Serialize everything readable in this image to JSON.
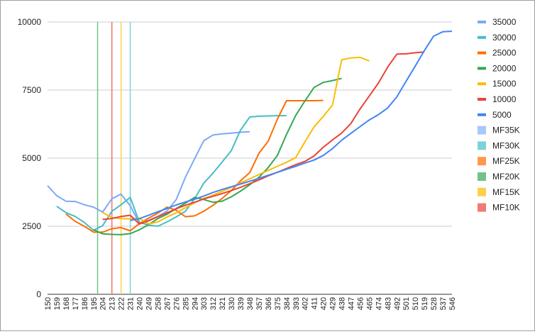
{
  "chart_data": {
    "type": "line",
    "title": "",
    "xlabel": "",
    "ylabel": "",
    "ylim": [
      0,
      10000
    ],
    "yticks": [
      0,
      2500,
      5000,
      7500,
      10000
    ],
    "ytick_labels": [
      "0",
      "2500",
      "5000",
      "7500",
      "10000"
    ],
    "grid": true,
    "legend_position": "right",
    "categories": [
      "150",
      "159",
      "168",
      "177",
      "186",
      "195",
      "204",
      "213",
      "222",
      "231",
      "240",
      "249",
      "258",
      "267",
      "276",
      "285",
      "294",
      "303",
      "312",
      "321",
      "330",
      "339",
      "348",
      "357",
      "366",
      "375",
      "384",
      "393",
      "402",
      "411",
      "420",
      "429",
      "438",
      "447",
      "456",
      "465",
      "474",
      "483",
      "492",
      "501",
      "510",
      "519",
      "528",
      "537",
      "546"
    ],
    "series": [
      {
        "name": "35000",
        "color": "#7baaf7",
        "values": [
          3990,
          3620,
          3420,
          3410,
          3290,
          3200,
          3020,
          3510,
          3680,
          3250,
          2600,
          2720,
          2860,
          3060,
          3480,
          4300,
          4980,
          5640,
          5850,
          5890,
          5920,
          5950,
          5970,
          null,
          null,
          null,
          null,
          null,
          null,
          null,
          null,
          null,
          null,
          null,
          null,
          null,
          null,
          null,
          null,
          null,
          null,
          null,
          null,
          null,
          null
        ]
      },
      {
        "name": "30000",
        "color": "#46bdc6",
        "values": [
          null,
          3230,
          3000,
          2860,
          2640,
          2350,
          2520,
          3050,
          3290,
          3560,
          2640,
          2540,
          2500,
          2660,
          2840,
          3050,
          3510,
          4080,
          4450,
          4860,
          5280,
          6030,
          6510,
          6540,
          6550,
          6560,
          6560,
          null,
          null,
          null,
          null,
          null,
          null,
          null,
          null,
          null,
          null,
          null,
          null,
          null,
          null,
          null,
          null,
          null,
          null
        ]
      },
      {
        "name": "25000",
        "color": "#ff6d01",
        "values": [
          null,
          null,
          2950,
          2680,
          2500,
          2280,
          2280,
          2410,
          2450,
          2330,
          2600,
          2800,
          2980,
          3200,
          3080,
          2850,
          2880,
          3050,
          3270,
          3520,
          3810,
          4170,
          4470,
          5180,
          5620,
          6430,
          7110,
          7110,
          7110,
          7110,
          7120,
          null,
          null,
          null,
          null,
          null,
          null,
          null,
          null,
          null,
          null,
          null,
          null,
          null,
          null
        ]
      },
      {
        "name": "20000",
        "color": "#34a853",
        "values": [
          null,
          null,
          null,
          null,
          null,
          2370,
          2220,
          2200,
          2190,
          2230,
          2370,
          2560,
          2780,
          2940,
          3150,
          3350,
          3560,
          3480,
          3380,
          3420,
          3580,
          3790,
          4020,
          4300,
          4650,
          5100,
          5870,
          6570,
          7100,
          7600,
          7780,
          7850,
          7930,
          null,
          null,
          null,
          null,
          null,
          null,
          null,
          null,
          null,
          null,
          null,
          null
        ]
      },
      {
        "name": "15000",
        "color": "#fbbc04",
        "values": [
          null,
          null,
          null,
          null,
          null,
          null,
          3000,
          2820,
          2780,
          2770,
          2790,
          2580,
          2660,
          2840,
          2990,
          3180,
          3360,
          3520,
          3640,
          3780,
          3930,
          4090,
          4240,
          4400,
          4550,
          4700,
          4850,
          5020,
          5600,
          6150,
          6530,
          6950,
          8610,
          8680,
          8700,
          8570,
          null,
          null,
          null,
          null,
          null,
          null,
          null,
          null,
          null
        ]
      },
      {
        "name": "10000",
        "color": "#ea4335",
        "values": [
          null,
          null,
          null,
          null,
          null,
          null,
          2750,
          2780,
          2860,
          2900,
          2580,
          2700,
          2850,
          2990,
          3140,
          3270,
          3380,
          3500,
          3600,
          3700,
          3810,
          3930,
          4060,
          4200,
          4350,
          4480,
          4620,
          4760,
          4880,
          5080,
          5400,
          5670,
          5920,
          6270,
          6810,
          7280,
          7760,
          8340,
          8820,
          8830,
          8870,
          8900,
          null,
          null,
          null
        ]
      },
      {
        "name": "5000",
        "color": "#4285f4",
        "values": [
          null,
          null,
          null,
          null,
          null,
          null,
          null,
          null,
          null,
          2710,
          2780,
          2900,
          3030,
          3150,
          3280,
          3390,
          3490,
          3610,
          3740,
          3850,
          3950,
          4050,
          4150,
          4260,
          4370,
          4480,
          4590,
          4700,
          4820,
          4930,
          5100,
          5350,
          5660,
          5910,
          6160,
          6400,
          6600,
          6840,
          7250,
          7820,
          8380,
          8950,
          9480,
          9640,
          9660
        ]
      }
    ],
    "markers": [
      {
        "name": "MF35K",
        "color": "#a8c7fa",
        "category": "213"
      },
      {
        "name": "MF30K",
        "color": "#7ed1d7",
        "category": "231"
      },
      {
        "name": "MF25K",
        "color": "#ff994d",
        "category": "213"
      },
      {
        "name": "MF20K",
        "color": "#71c287",
        "category": "199"
      },
      {
        "name": "MF15K",
        "color": "#fcd04f",
        "category": "222"
      },
      {
        "name": "MF10K",
        "color": "#f07b72",
        "category": "213"
      }
    ]
  },
  "legend": {
    "items": [
      {
        "label": "35000",
        "color": "#7baaf7",
        "kind": "line"
      },
      {
        "label": "30000",
        "color": "#46bdc6",
        "kind": "line"
      },
      {
        "label": "25000",
        "color": "#ff6d01",
        "kind": "line"
      },
      {
        "label": "20000",
        "color": "#34a853",
        "kind": "line"
      },
      {
        "label": "15000",
        "color": "#fbbc04",
        "kind": "line"
      },
      {
        "label": "10000",
        "color": "#ea4335",
        "kind": "line"
      },
      {
        "label": "5000",
        "color": "#4285f4",
        "kind": "line"
      },
      {
        "label": "MF35K",
        "color": "#a8c7fa",
        "kind": "box"
      },
      {
        "label": "MF30K",
        "color": "#7ed1d7",
        "kind": "box"
      },
      {
        "label": "MF25K",
        "color": "#ff994d",
        "kind": "box"
      },
      {
        "label": "MF20K",
        "color": "#71c287",
        "kind": "box"
      },
      {
        "label": "MF15K",
        "color": "#fcd04f",
        "kind": "box"
      },
      {
        "label": "MF10K",
        "color": "#f07b72",
        "kind": "box"
      }
    ]
  }
}
